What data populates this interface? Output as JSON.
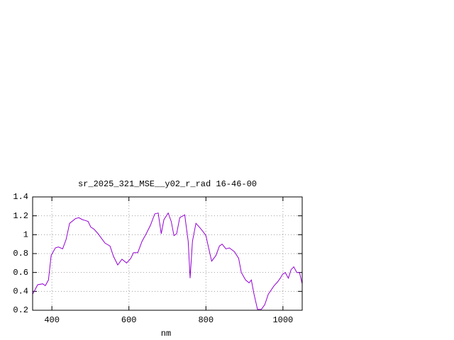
{
  "chart_data": {
    "type": "line",
    "title": "sr_2025_321_MSE__y02_r_rad 16-46-00",
    "x_label": "nm",
    "xlim": [
      350,
      1050
    ],
    "xticks": [
      400,
      600,
      800,
      1000
    ],
    "ylim": [
      0.2,
      1.4
    ],
    "yticks": [
      0.2,
      0.4,
      0.6,
      0.8,
      1,
      1.2,
      1.4
    ],
    "grid": true,
    "series": [
      {
        "color": "#9400d3",
        "x": [
          350,
          354,
          363,
          376,
          383,
          391,
          398,
          409,
          417,
          428,
          437,
          446,
          461,
          470,
          479,
          487,
          494,
          501,
          509,
          520,
          529,
          538,
          551,
          560,
          571,
          582,
          594,
          605,
          612,
          623,
          634,
          645,
          656,
          667,
          676,
          684,
          691,
          702,
          710,
          717,
          724,
          732,
          745,
          754,
          759,
          765,
          774,
          783,
          793,
          800,
          807,
          815,
          826,
          835,
          842,
          852,
          861,
          874,
          885,
          892,
          903,
          912,
          918,
          925,
          934,
          944,
          953,
          962,
          977,
          986,
          993,
          999,
          1006,
          1014,
          1021,
          1028,
          1036,
          1043,
          1050
        ],
        "values": [
          0.37,
          0.4,
          0.47,
          0.48,
          0.46,
          0.52,
          0.78,
          0.86,
          0.87,
          0.85,
          0.95,
          1.12,
          1.17,
          1.18,
          1.16,
          1.15,
          1.14,
          1.08,
          1.06,
          1.01,
          0.96,
          0.91,
          0.88,
          0.77,
          0.68,
          0.74,
          0.7,
          0.75,
          0.81,
          0.81,
          0.93,
          1.01,
          1.1,
          1.22,
          1.23,
          1.01,
          1.16,
          1.23,
          1.14,
          0.99,
          1.01,
          1.18,
          1.21,
          0.93,
          0.54,
          0.93,
          1.12,
          1.08,
          1.03,
          0.99,
          0.86,
          0.72,
          0.78,
          0.88,
          0.9,
          0.85,
          0.86,
          0.82,
          0.75,
          0.6,
          0.52,
          0.49,
          0.52,
          0.37,
          0.21,
          0.21,
          0.26,
          0.37,
          0.46,
          0.5,
          0.54,
          0.58,
          0.6,
          0.54,
          0.63,
          0.66,
          0.6,
          0.6,
          0.48
        ]
      }
    ]
  }
}
